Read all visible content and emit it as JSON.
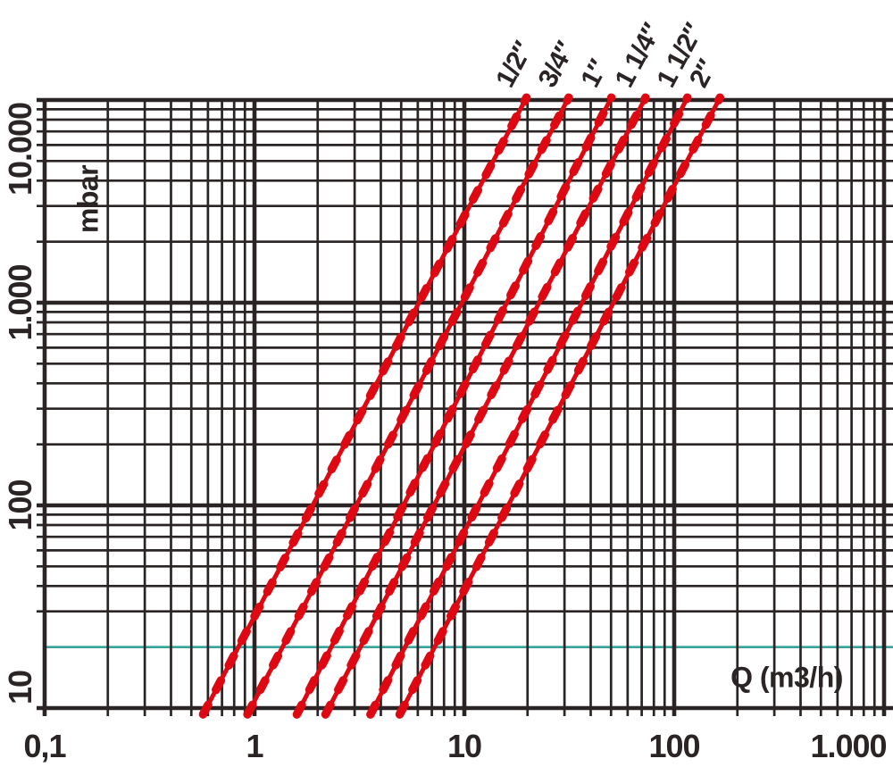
{
  "chart_data": {
    "type": "line",
    "title": "",
    "xlabel": "Q (m3/h)",
    "ylabel": "mbar",
    "x_axis": {
      "scale": "log",
      "min": 0.1,
      "max": 1000,
      "ticks": [
        {
          "value": 0.1,
          "label": "0,1"
        },
        {
          "value": 1,
          "label": "1"
        },
        {
          "value": 10,
          "label": "10"
        },
        {
          "value": 100,
          "label": "100"
        },
        {
          "value": 1000,
          "label": "1.000"
        }
      ]
    },
    "y_axis": {
      "scale": "log",
      "min": 10,
      "max": 10000,
      "ticks": [
        {
          "value": 10,
          "label": "10"
        },
        {
          "value": 100,
          "label": "100"
        },
        {
          "value": 1000,
          "label": "1.000"
        },
        {
          "value": 10000,
          "label": "10.000"
        }
      ]
    },
    "grid": true,
    "grid_color": "#2a2425",
    "text_color": "#2a2425",
    "line_color": "#de0813",
    "reference_line": {
      "axis": "y",
      "value": 20,
      "color": "#38a39e"
    },
    "series": [
      {
        "name": "1/2″",
        "points": [
          [
            0.59,
            10
          ],
          [
            19.5,
            10000
          ]
        ]
      },
      {
        "name": "3/4″",
        "points": [
          [
            0.96,
            10
          ],
          [
            31,
            10000
          ]
        ]
      },
      {
        "name": "1″",
        "points": [
          [
            1.65,
            10
          ],
          [
            49.5,
            10000
          ]
        ]
      },
      {
        "name": "1 1/4″",
        "points": [
          [
            2.26,
            10
          ],
          [
            72,
            10000
          ]
        ]
      },
      {
        "name": "1 1/2″",
        "points": [
          [
            3.7,
            10
          ],
          [
            114,
            10000
          ]
        ]
      },
      {
        "name": "2″",
        "points": [
          [
            5.1,
            10
          ],
          [
            163,
            10000
          ]
        ]
      }
    ]
  }
}
